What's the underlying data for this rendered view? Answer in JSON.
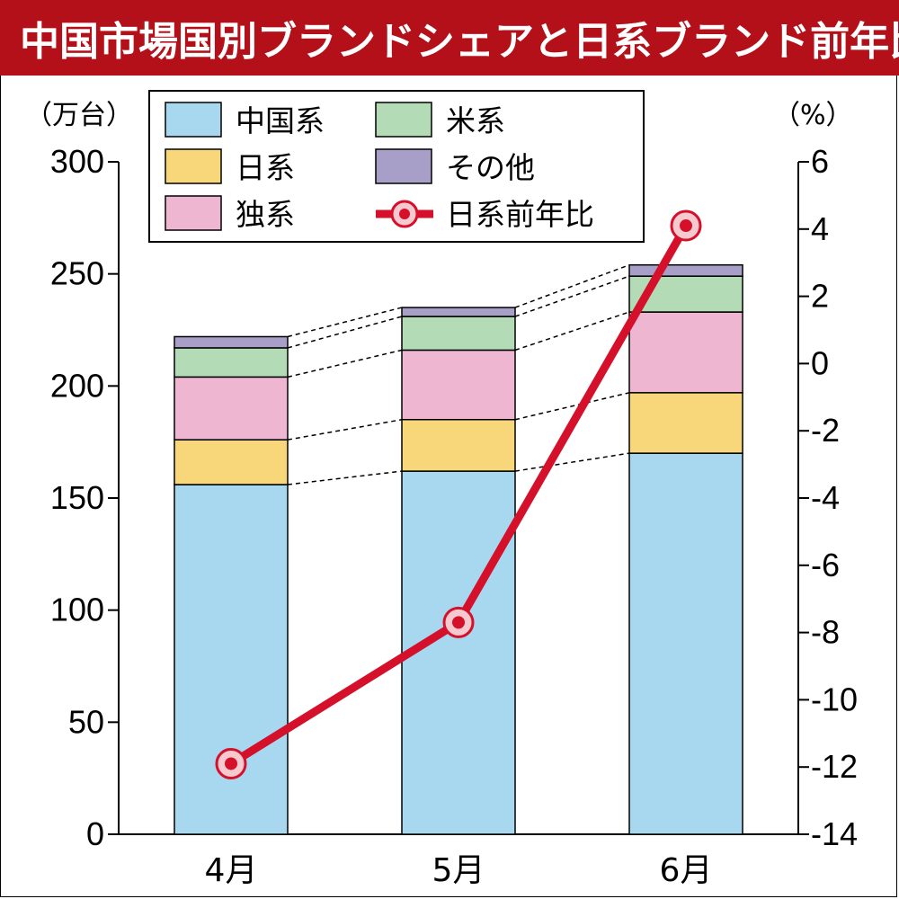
{
  "title": "中国市場国別ブランドシェアと日系ブランド前年比",
  "chart_data": {
    "type": "bar",
    "stacked": true,
    "categories": [
      "4月",
      "5月",
      "6月"
    ],
    "left_unit": "（万台）",
    "right_unit": "（%）",
    "ylim": [
      0,
      300
    ],
    "left_ticks": [
      "300",
      "250",
      "200",
      "150",
      "100",
      "50",
      "0"
    ],
    "y2lim": [
      -14,
      6
    ],
    "right_ticks": [
      "6",
      "4",
      "2",
      "0",
      "-2",
      "-4",
      "-6",
      "-8",
      "-10",
      "-12",
      "-14"
    ],
    "series": [
      {
        "name": "中国系",
        "color": "#a8d7f0",
        "values": [
          156,
          162,
          170
        ]
      },
      {
        "name": "日系",
        "color": "#f8d67a",
        "values": [
          20,
          23,
          27
        ]
      },
      {
        "name": "独系",
        "color": "#eeb6d1",
        "values": [
          28,
          31,
          36
        ]
      },
      {
        "name": "米系",
        "color": "#b3dbb5",
        "values": [
          13,
          15,
          16
        ]
      },
      {
        "name": "その他",
        "color": "#a89fc9",
        "values": [
          5,
          4,
          5
        ]
      }
    ],
    "line_series": {
      "name": "日系前年比",
      "color": "#d4102a",
      "values": [
        -11.9,
        -7.7,
        4.1
      ]
    },
    "legend_placement": "top-left",
    "grid": false
  }
}
